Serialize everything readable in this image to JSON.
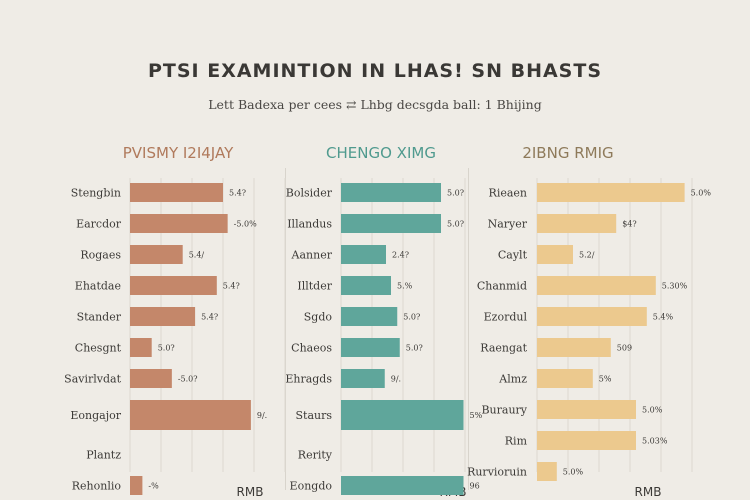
{
  "title": "PTSI EXAMINTION IN LHAS! SN BHASTS",
  "subtitle": "Lett Badexa per cees ⇄ Lhbg decsgda ball: 1 Bhijing",
  "chart_data": [
    {
      "type": "bar",
      "title": "PVISMY I2I4JAY",
      "color": "#c4876a",
      "title_color": "#b07a5c",
      "xlabel": "RMB",
      "xlim": [
        0,
        100
      ],
      "grid": true,
      "categories": [
        "Stengbin",
        "Earcdor",
        "Rogaes",
        "Ehatdae",
        "Stander",
        "Chesgnt",
        "Savirlvdat",
        "Eongajor",
        "Plantz",
        "Rehonlio"
      ],
      "value_labels": [
        "5.4?",
        "-5.0%",
        "5.4/",
        "5.4?",
        "5.4?",
        "5.0?",
        "-5.0?",
        "9/.",
        "",
        "-%"
      ],
      "values": [
        60,
        63,
        34,
        56,
        42,
        14,
        27,
        78,
        null,
        8
      ],
      "spans": [
        1,
        1,
        1,
        1,
        1,
        1,
        1,
        1.5,
        0,
        1
      ]
    },
    {
      "type": "bar",
      "title": "CHENGO XIMG",
      "color": "#5fa69b",
      "title_color": "#4f9a8e",
      "xlabel": "RMB",
      "xlim": [
        0,
        100
      ],
      "grid": true,
      "categories": [
        "Bolsider",
        "Illandus",
        "Aanner",
        "Illtder",
        "Sgdo",
        "Chaeos",
        "Ehragds",
        "Staurs",
        "Rerity",
        "Eongdo"
      ],
      "value_labels": [
        "5.0?",
        "5.0?",
        "2.4?",
        "5.%",
        "5.0?",
        "5.0?",
        "9/.",
        "5%",
        "",
        "96"
      ],
      "values": [
        80,
        80,
        36,
        40,
        45,
        47,
        35,
        98,
        null,
        98
      ],
      "spans": [
        1,
        1,
        1,
        1,
        1,
        1,
        1,
        1.5,
        0,
        1
      ]
    },
    {
      "type": "bar",
      "title": "2IBNG RMIG",
      "color": "#ecc98e",
      "title_color": "#8e7a5a",
      "xlabel": "RMB",
      "xlim": [
        0,
        100
      ],
      "grid": true,
      "categories": [
        "Rieaen",
        "Naryer",
        "Caylt",
        "Chanmid",
        "Ezordul",
        "Raengat",
        "Almz",
        "Buraury",
        "Rim",
        "Rurvioruin"
      ],
      "value_labels": [
        "5.0%",
        "$4?",
        "5.2/",
        "5.30%",
        "5.4%",
        "509",
        "5%",
        "5.0%",
        "5.03%",
        "5.0%"
      ],
      "values": [
        82,
        44,
        20,
        66,
        61,
        41,
        31,
        55,
        55,
        11
      ],
      "spans": [
        1,
        1,
        1,
        1,
        1,
        1,
        1,
        1,
        1,
        1
      ]
    }
  ]
}
